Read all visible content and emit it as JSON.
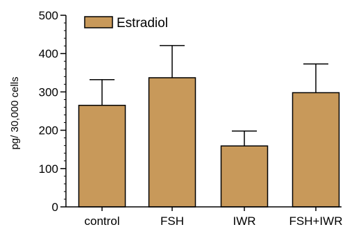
{
  "chart_data": {
    "type": "bar",
    "categories": [
      "control",
      "FSH",
      "IWR",
      "FSH+IWR"
    ],
    "series": [
      {
        "name": "Estradiol",
        "values": [
          265,
          337,
          159,
          298
        ],
        "error_upper": [
          332,
          421,
          198,
          373
        ],
        "color": "#C8995A"
      }
    ],
    "title": "",
    "xlabel": "",
    "ylabel": "pg/ 30,000 cells",
    "ylim": [
      0,
      500
    ],
    "yticks": [
      0,
      100,
      200,
      300,
      400,
      500
    ],
    "grid": false,
    "legend": {
      "label": "Estradiol",
      "placement": "top-left"
    }
  }
}
